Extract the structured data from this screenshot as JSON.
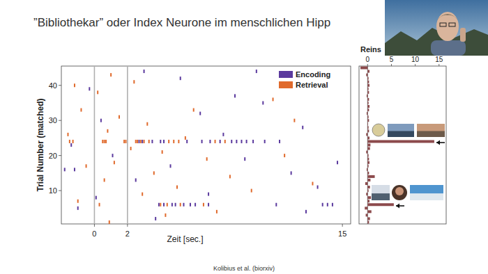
{
  "slide": {
    "title": "”Bibliothekar” oder Index Neurone im menschlichen Hipp",
    "citation": "Kolibius et al. (biorxiv)"
  },
  "chart_data": [
    {
      "type": "scatter",
      "marker": "vline",
      "xlabel": "Zeit [sec.]",
      "ylabel": "Trial Number (matched)",
      "xlim": [
        -2,
        15.5
      ],
      "ylim": [
        0.5,
        45.5
      ],
      "xticks": [
        0,
        2,
        15
      ],
      "yticks": [
        10,
        20,
        30,
        40
      ],
      "stimulus_window": [
        0,
        2
      ],
      "legend": "upper right",
      "series": [
        {
          "name": "Encoding",
          "color": "#5b3a9e",
          "x": [
            2.7,
            2.9,
            3.5,
            4.0,
            4.2,
            5.6,
            6.5,
            7.0,
            7.6,
            8.3,
            8.6,
            8.9,
            9.2,
            9.6,
            10.3,
            11.2,
            3.9,
            4.2,
            4.7,
            4.9,
            5.4,
            5.8,
            6.1,
            6.9,
            11.0,
            13.8,
            14.1,
            14.4,
            3.0,
            5.2,
            -0.3,
            8.5,
            10.2,
            6.4,
            0.4,
            12.6,
            7.8,
            -1.4,
            1.1,
            9.1,
            4.6,
            -1.8,
            -1.2,
            11.9,
            2.5,
            13.5,
            6.9,
            0.1,
            -1.0,
            12.8,
            3.7,
            9.8,
            14.7
          ],
          "values": [
            24,
            24,
            24,
            24,
            24,
            24,
            24,
            24,
            24,
            24,
            24,
            24,
            24,
            24,
            24,
            24,
            6,
            6,
            6,
            6,
            6,
            6,
            6,
            6,
            6,
            6,
            6,
            6,
            44,
            42,
            39,
            37,
            35,
            32,
            30,
            28,
            26,
            23,
            20,
            19,
            17,
            16,
            16,
            15,
            13,
            11,
            9,
            8,
            5,
            4,
            2,
            44,
            18
          ]
        },
        {
          "name": "Retrieval",
          "color": "#e06a2c",
          "x": [
            -1.5,
            -1.3,
            0.5,
            0.6,
            0.7,
            1.8,
            1.9,
            2.5,
            2.6,
            2.8,
            3.0,
            3.3,
            4.5,
            4.8,
            5.1,
            7.3,
            7.9,
            0.3,
            4.0,
            4.4,
            5.2,
            6.6,
            -1.2,
            0.2,
            1.0,
            2.4,
            -0.8,
            1.5,
            3.2,
            -1.6,
            0.8,
            5.5,
            2.2,
            4.1,
            6.8,
            -0.5,
            1.2,
            3.6,
            8.2,
            0.6,
            5.0,
            9.5,
            2.9,
            -1.0,
            7.4,
            4.3,
            10.8,
            12.1,
            6.0,
            11.5,
            13.2,
            0.9
          ],
          "values": [
            24,
            24,
            24,
            24,
            24,
            24,
            24,
            24,
            24,
            24,
            24,
            24,
            24,
            24,
            24,
            24,
            24,
            6,
            6,
            6,
            6,
            6,
            40,
            38,
            43,
            41,
            33,
            31,
            29,
            26,
            27,
            25,
            22,
            21,
            19,
            17,
            18,
            15,
            14,
            13,
            11,
            10,
            9,
            7,
            4,
            3,
            36,
            30,
            33,
            20,
            12,
            1
          ]
        }
      ]
    },
    {
      "type": "bar",
      "orientation": "horizontal",
      "xlabel": "Reins",
      "categories": [
        1,
        2,
        3,
        4,
        5,
        6,
        7,
        8,
        9,
        10,
        11,
        12,
        13,
        14,
        15,
        16,
        17,
        18,
        19,
        20,
        21,
        22,
        23,
        24,
        25,
        26,
        27,
        28,
        29,
        30,
        31,
        32,
        33,
        34,
        35,
        36,
        37,
        38,
        39,
        40,
        41,
        42,
        43,
        44,
        45
      ],
      "values": [
        0.3,
        0.5,
        -0.4,
        0.8,
        -0.6,
        5.5,
        0.4,
        0.7,
        -0.3,
        0.2,
        0.5,
        -0.5,
        0.6,
        1.5,
        0.3,
        -0.2,
        0.2,
        0.4,
        0.3,
        0.2,
        -0.3,
        0.5,
        0.6,
        14,
        0.4,
        -0.3,
        0.3,
        0.2,
        0.1,
        0.3,
        0.2,
        -0.2,
        0.3,
        0.4,
        0.2,
        0.3,
        -0.2,
        0.3,
        0.2,
        0.4,
        0.3,
        0.2,
        -0.3,
        0.4,
        -1.5
      ],
      "color": "#8c4a4c",
      "xlim": [
        -1.8,
        16.5
      ],
      "xticks": [
        0,
        5,
        10,
        15
      ],
      "ylim": [
        0.5,
        45.5
      ],
      "tick_labels": "x"
    }
  ]
}
